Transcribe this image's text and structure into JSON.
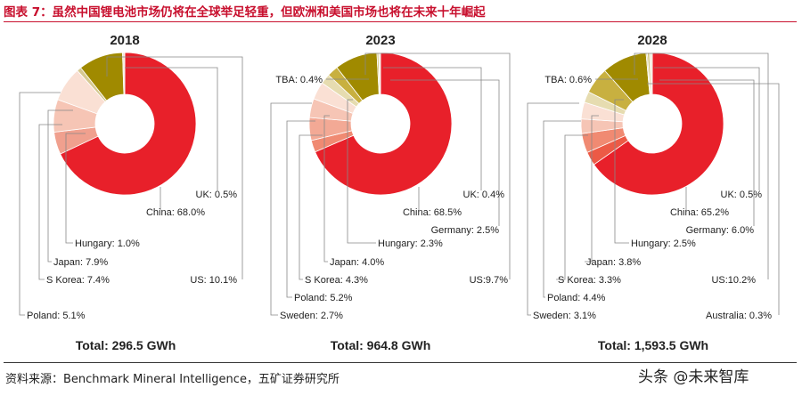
{
  "figure": {
    "title": "图表 7：虽然中国锂电池市场仍将在全球举足轻重，但欧洲和美国市场也将在未来十年崛起",
    "source": "资料来源：Benchmark Mineral Intelligence，五矿证券研究所",
    "watermark": "头条 @未来智库"
  },
  "chart_data": [
    {
      "type": "pie",
      "title": "2018",
      "total_label": "Total: 296.5 GWh",
      "slices": [
        {
          "name": "China",
          "label": "China: 68.0%",
          "value": 68.0,
          "color": "#e8202a"
        },
        {
          "name": "Poland",
          "label": "Poland: 5.1%",
          "value": 5.1,
          "color": "#f0a08e"
        },
        {
          "name": "S Korea",
          "label": "S Korea: 7.4%",
          "value": 7.4,
          "color": "#f6c5b5"
        },
        {
          "name": "Japan",
          "label": "Japan: 7.9%",
          "value": 7.9,
          "color": "#fae0d4"
        },
        {
          "name": "Hungary",
          "label": "Hungary: 1.0%",
          "value": 1.0,
          "color": "#d6c890"
        },
        {
          "name": "US",
          "label": "US: 10.1%",
          "value": 10.1,
          "color": "#a08a00"
        },
        {
          "name": "UK",
          "label": "UK: 0.5%",
          "value": 0.5,
          "color": "#f0ead8"
        }
      ]
    },
    {
      "type": "pie",
      "title": "2023",
      "total_label": "Total: 964.8 GWh",
      "slices": [
        {
          "name": "China",
          "label": "China: 68.5%",
          "value": 68.5,
          "color": "#e8202a"
        },
        {
          "name": "Sweden",
          "label": "Sweden: 2.7%",
          "value": 2.7,
          "color": "#f08a72"
        },
        {
          "name": "Poland",
          "label": "Poland: 5.2%",
          "value": 5.2,
          "color": "#f3a995"
        },
        {
          "name": "S Korea",
          "label": "S Korea: 4.3%",
          "value": 4.3,
          "color": "#f6c5b5"
        },
        {
          "name": "Japan",
          "label": "Japan: 4.0%",
          "value": 4.0,
          "color": "#fae0d4"
        },
        {
          "name": "Hungary",
          "label": "Hungary: 2.3%",
          "value": 2.3,
          "color": "#e6dcb0"
        },
        {
          "name": "Germany",
          "label": "Germany: 2.5%",
          "value": 2.5,
          "color": "#c8b040"
        },
        {
          "name": "US",
          "label": "US:9.7%",
          "value": 9.7,
          "color": "#a08a00"
        },
        {
          "name": "UK",
          "label": "UK: 0.4%",
          "value": 0.4,
          "color": "#cfc27a"
        },
        {
          "name": "TBA",
          "label": "TBA: 0.4%",
          "value": 0.4,
          "color": "#f0ead8"
        }
      ]
    },
    {
      "type": "pie",
      "title": "2028",
      "total_label": "Total: 1,593.5 GWh",
      "slices": [
        {
          "name": "China",
          "label": "China: 65.2%",
          "value": 65.2,
          "color": "#e8202a"
        },
        {
          "name": "Sweden",
          "label": "Sweden: 3.1%",
          "value": 3.1,
          "color": "#ec5a46"
        },
        {
          "name": "Poland",
          "label": "Poland: 4.4%",
          "value": 4.4,
          "color": "#f08a72"
        },
        {
          "name": "S Korea",
          "label": "S Korea: 3.3%",
          "value": 3.3,
          "color": "#f6c5b5"
        },
        {
          "name": "Japan",
          "label": "Japan: 3.8%",
          "value": 3.8,
          "color": "#fae0d4"
        },
        {
          "name": "Hungary",
          "label": "Hungary: 2.5%",
          "value": 2.5,
          "color": "#e6dcb0"
        },
        {
          "name": "Germany",
          "label": "Germany: 6.0%",
          "value": 6.0,
          "color": "#c8b040"
        },
        {
          "name": "US",
          "label": "US:10.2%",
          "value": 10.2,
          "color": "#a08a00"
        },
        {
          "name": "Australia",
          "label": "Australia: 0.3%",
          "value": 0.3,
          "color": "#d6c890"
        },
        {
          "name": "UK",
          "label": "UK: 0.5%",
          "value": 0.5,
          "color": "#cfc27a"
        },
        {
          "name": "TBA",
          "label": "TBA: 0.6%",
          "value": 0.6,
          "color": "#f0ead8"
        }
      ]
    }
  ]
}
